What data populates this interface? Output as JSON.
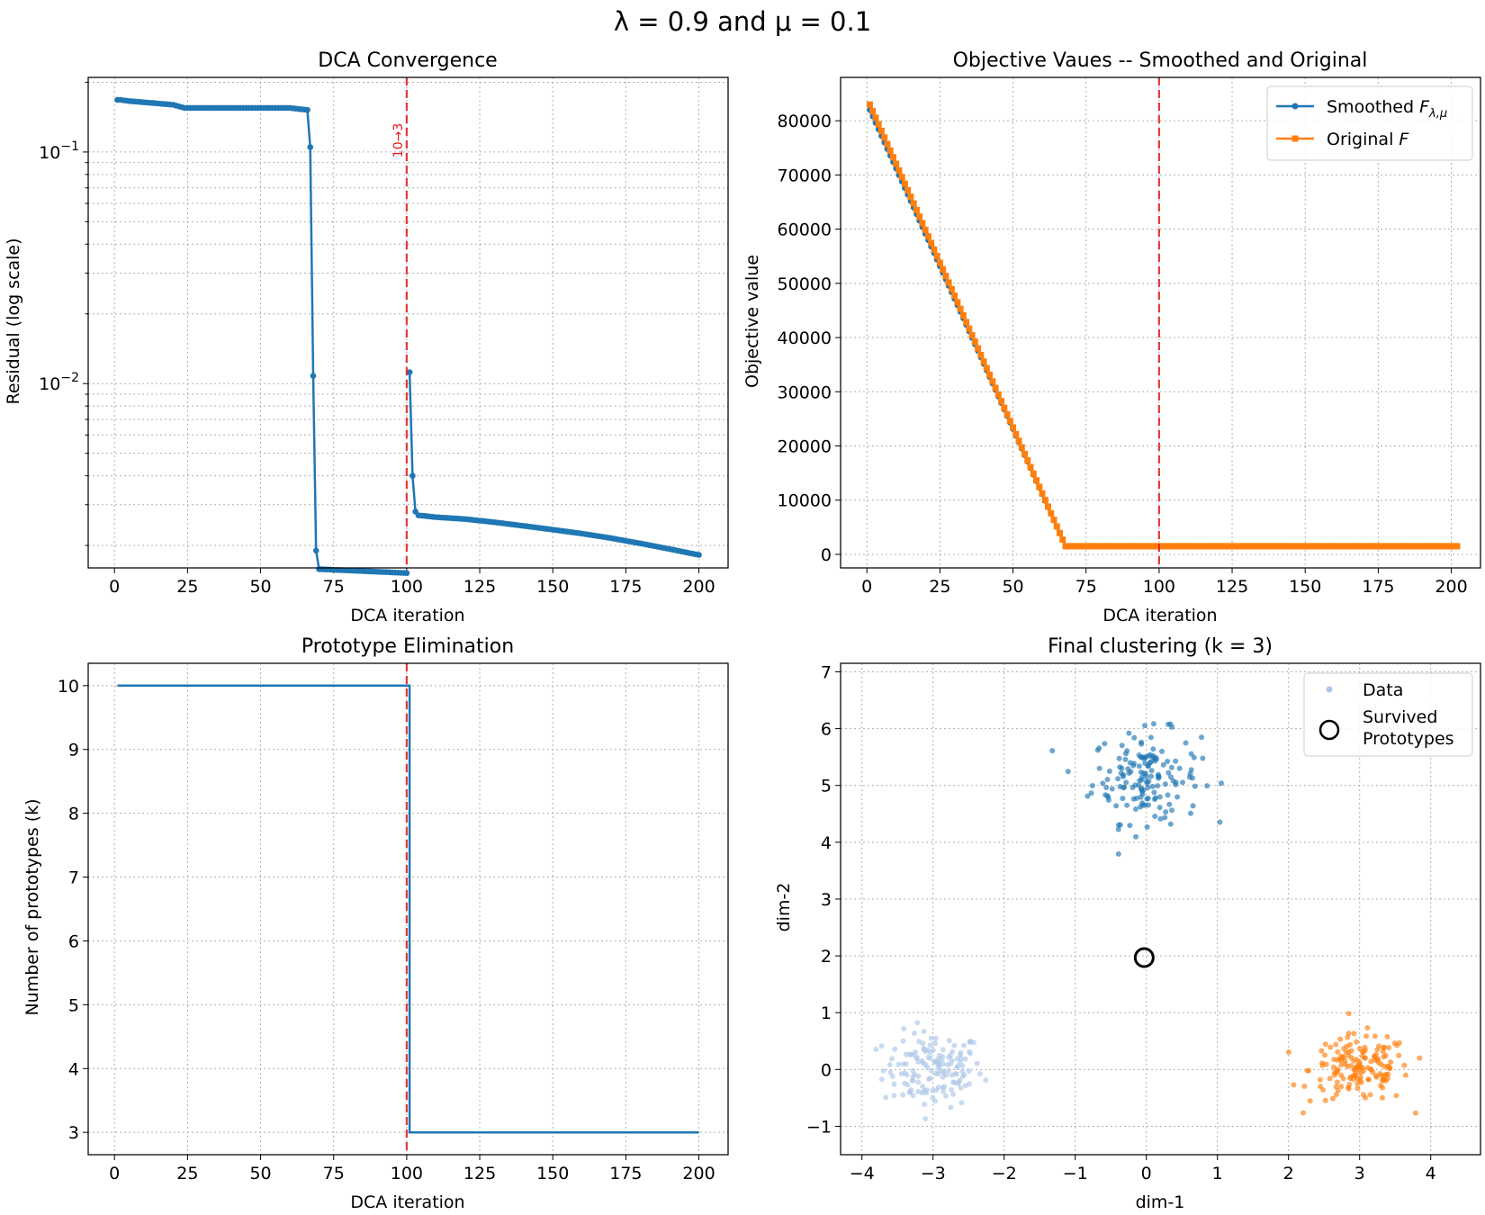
{
  "suptitle": "λ = 0.9 and μ = 0.1",
  "colors": {
    "blue": "#1f77b4",
    "orange": "#ff7f0e",
    "lightblue": "#aec7e8",
    "red": "#e41a1c",
    "grid": "#b0b0b0"
  },
  "chart_data": [
    {
      "type": "line",
      "title": "DCA Convergence",
      "xlabel": "DCA iteration",
      "ylabel": "Residual (log scale)",
      "yscale": "log",
      "xlim": [
        -9,
        210
      ],
      "ylim": [
        0.0016,
        0.21
      ],
      "xticks": [
        "0",
        "25",
        "50",
        "75",
        "100",
        "125",
        "150",
        "175",
        "200"
      ],
      "yticks": [
        "10^-1",
        "10^-2"
      ],
      "grid": true,
      "vline": {
        "x": 100,
        "label": "10→3"
      },
      "series": [
        {
          "color": "#1f77b4",
          "marker": "circle",
          "segments": [
            {
              "x": [
                1,
                2,
                5,
                10,
                15,
                20,
                24,
                30,
                40,
                50,
                60,
                66,
                67,
                68,
                69,
                70,
                75,
                80,
                85,
                90,
                95,
                100
              ],
              "y": [
                0.168,
                0.168,
                0.166,
                0.164,
                0.162,
                0.16,
                0.155,
                0.155,
                0.155,
                0.155,
                0.155,
                0.152,
                0.105,
                0.0108,
                0.0019,
                0.00158,
                0.00157,
                0.00156,
                0.00155,
                0.00154,
                0.00153,
                0.00152
              ]
            },
            {
              "x": [
                101,
                102,
                103,
                104,
                110,
                120,
                130,
                140,
                150,
                160,
                170,
                180,
                190,
                200
              ],
              "y": [
                0.0112,
                0.004,
                0.0028,
                0.0027,
                0.00265,
                0.0026,
                0.00252,
                0.00243,
                0.00234,
                0.00225,
                0.00215,
                0.00204,
                0.00193,
                0.00182
              ]
            }
          ]
        }
      ]
    },
    {
      "type": "line",
      "title": "Objective Vaues -- Smoothed and Original",
      "xlabel": "DCA iteration",
      "ylabel": "Objective value",
      "xlim": [
        -9,
        210
      ],
      "ylim": [
        -2500,
        88000
      ],
      "xticks": [
        "0",
        "25",
        "50",
        "75",
        "100",
        "125",
        "150",
        "175",
        "200"
      ],
      "yticks": [
        "0",
        "10000",
        "20000",
        "30000",
        "40000",
        "50000",
        "60000",
        "70000",
        "80000"
      ],
      "grid": true,
      "vline": {
        "x": 100
      },
      "legend_position": "top-right",
      "series": [
        {
          "name": "Smoothed F_λ,μ",
          "name_base": "Smoothed ",
          "name_sub": "λ,μ",
          "color": "#1f77b4",
          "marker": "circle",
          "x": [
            1,
            68,
            202
          ],
          "y": [
            82000,
            1500,
            1500
          ]
        },
        {
          "name": "Original F",
          "name_base": "Original ",
          "color": "#ff7f0e",
          "marker": "square",
          "x": [
            1,
            68,
            202
          ],
          "y": [
            83000,
            1500,
            1500
          ]
        }
      ]
    },
    {
      "type": "line",
      "title": "Prototype Elimination",
      "xlabel": "DCA iteration",
      "ylabel": "Number of prototypes (k)",
      "xlim": [
        -9,
        210
      ],
      "ylim": [
        2.65,
        10.35
      ],
      "xticks": [
        "0",
        "25",
        "50",
        "75",
        "100",
        "125",
        "150",
        "175",
        "200"
      ],
      "yticks": [
        "3",
        "4",
        "5",
        "6",
        "7",
        "8",
        "9",
        "10"
      ],
      "grid": true,
      "vline": {
        "x": 100
      },
      "series": [
        {
          "color": "#1f77b4",
          "step": true,
          "x": [
            1,
            101,
            101,
            200
          ],
          "y": [
            10,
            10,
            3,
            3
          ]
        }
      ]
    },
    {
      "type": "scatter",
      "title": "Final clustering (k = 3)",
      "xlabel": "dim-1",
      "ylabel": "dim-2",
      "xlim": [
        -4.3,
        4.7
      ],
      "ylim": [
        -1.5,
        7.15
      ],
      "xticks": [
        "−4",
        "−3",
        "−2",
        "−1",
        "0",
        "1",
        "2",
        "3",
        "4"
      ],
      "yticks": [
        "−1",
        "0",
        "1",
        "2",
        "3",
        "4",
        "5",
        "6",
        "7"
      ],
      "grid": true,
      "legend_position": "top-right",
      "legend": [
        "Data",
        "Survived\nPrototypes"
      ],
      "clusters": [
        {
          "center": [
            -3.0,
            0.0
          ],
          "spread": [
            0.35,
            0.33
          ],
          "n": 150,
          "color": "#aec7e8"
        },
        {
          "center": [
            0.0,
            5.15
          ],
          "spread": [
            0.38,
            0.4
          ],
          "n": 160,
          "color": "#1f77b4"
        },
        {
          "center": [
            3.0,
            0.0
          ],
          "spread": [
            0.35,
            0.3
          ],
          "n": 160,
          "color": "#ff7f0e"
        }
      ],
      "prototypes": [
        [
          -0.03,
          1.97
        ]
      ]
    }
  ]
}
